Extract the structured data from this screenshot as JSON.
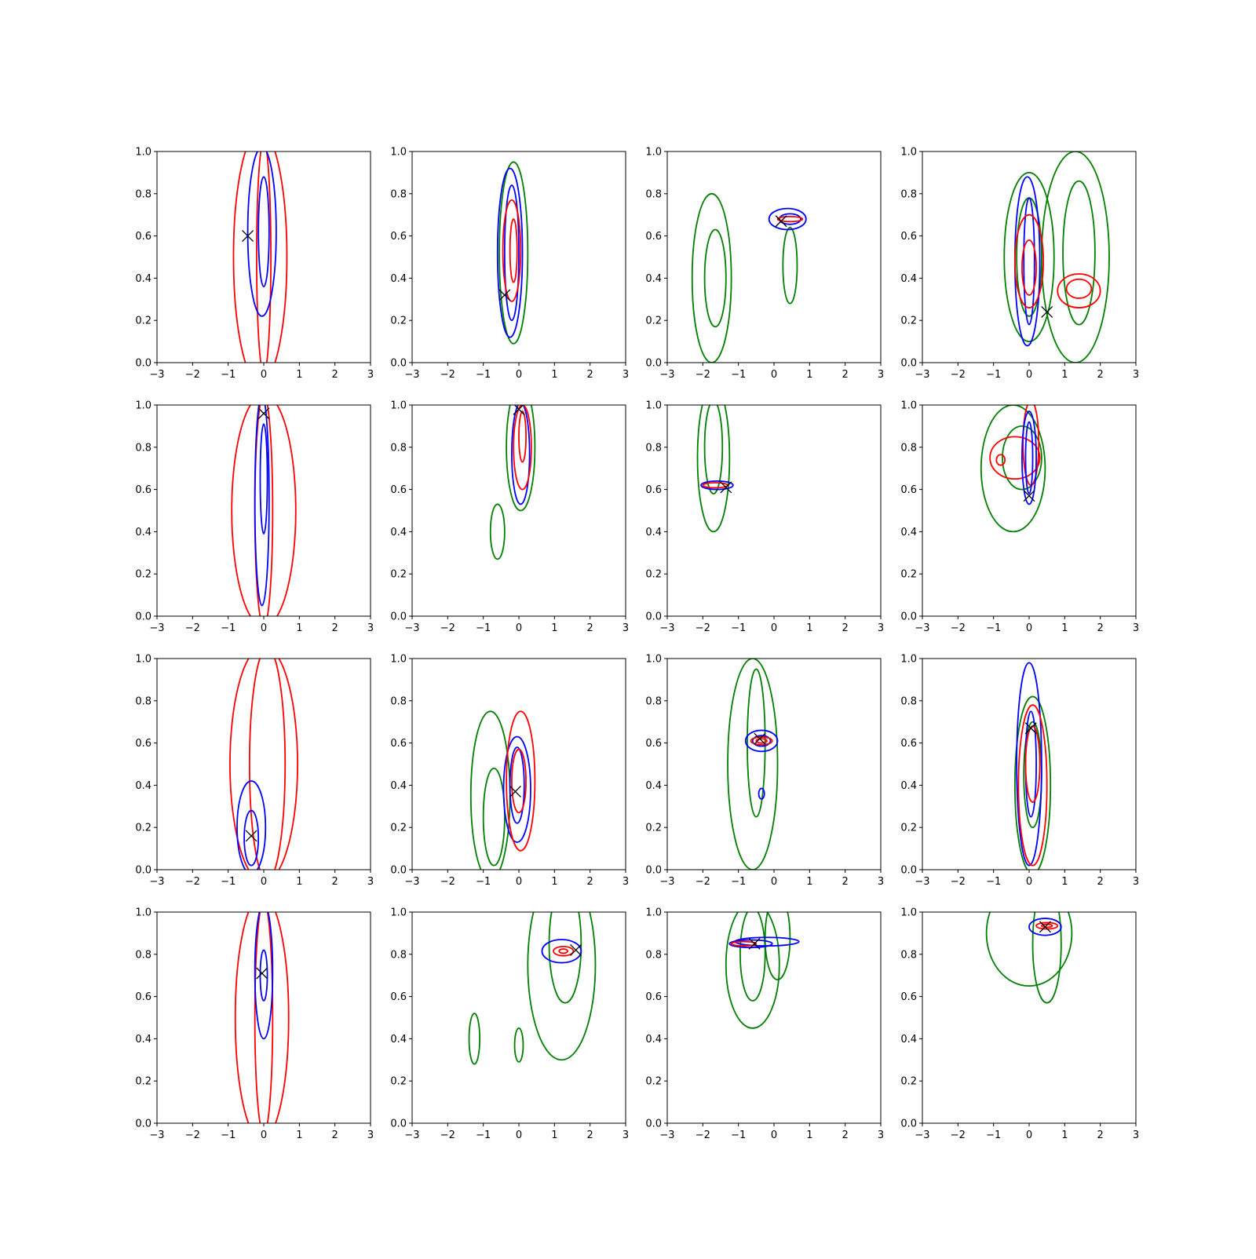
{
  "chart_data": {
    "type": "contour",
    "rows": 4,
    "cols": 4,
    "xlim": [
      -3,
      3
    ],
    "ylim": [
      0,
      1
    ],
    "xticks": [
      "−3",
      "−2",
      "−1",
      "0",
      "1",
      "2",
      "3"
    ],
    "yticks": [
      "0.0",
      "0.2",
      "0.4",
      "0.6",
      "0.8",
      "1.0"
    ],
    "colors": {
      "red": "#ff0000",
      "blue": "#0000ff",
      "green": "#008000",
      "marker": "#000000"
    },
    "marker_symbol": "x",
    "panels": [
      {
        "marker": [
          -0.45,
          0.6
        ],
        "contours": [
          {
            "color": "red",
            "cx": -0.1,
            "cy": 0.5,
            "rx": 0.75,
            "ry": 0.6
          },
          {
            "color": "red",
            "cx": 0.0,
            "cy": 0.5,
            "rx": 0.2,
            "ry": 0.55
          },
          {
            "color": "blue",
            "cx": -0.05,
            "cy": 0.62,
            "rx": 0.4,
            "ry": 0.4
          },
          {
            "color": "blue",
            "cx": 0.0,
            "cy": 0.62,
            "rx": 0.15,
            "ry": 0.26
          }
        ]
      },
      {
        "marker": [
          -0.4,
          0.32
        ],
        "contours": [
          {
            "color": "green",
            "cx": -0.15,
            "cy": 0.52,
            "rx": 0.4,
            "ry": 0.43
          },
          {
            "color": "blue",
            "cx": -0.25,
            "cy": 0.52,
            "rx": 0.35,
            "ry": 0.4
          },
          {
            "color": "blue",
            "cx": -0.2,
            "cy": 0.52,
            "rx": 0.2,
            "ry": 0.32
          },
          {
            "color": "red",
            "cx": -0.2,
            "cy": 0.53,
            "rx": 0.25,
            "ry": 0.24
          },
          {
            "color": "red",
            "cx": -0.15,
            "cy": 0.53,
            "rx": 0.1,
            "ry": 0.15
          }
        ]
      },
      {
        "marker": [
          0.2,
          0.67
        ],
        "contours": [
          {
            "color": "green",
            "cx": -1.75,
            "cy": 0.4,
            "rx": 0.55,
            "ry": 0.4
          },
          {
            "color": "green",
            "cx": -1.65,
            "cy": 0.4,
            "rx": 0.3,
            "ry": 0.23
          },
          {
            "color": "green",
            "cx": 0.45,
            "cy": 0.46,
            "rx": 0.2,
            "ry": 0.18
          },
          {
            "color": "blue",
            "cx": 0.38,
            "cy": 0.68,
            "rx": 0.52,
            "ry": 0.05
          },
          {
            "color": "blue",
            "cx": 0.45,
            "cy": 0.68,
            "rx": 0.3,
            "ry": 0.025
          },
          {
            "color": "red",
            "cx": 0.45,
            "cy": 0.68,
            "rx": 0.35,
            "ry": 0.012
          }
        ]
      },
      {
        "marker": [
          0.5,
          0.24
        ],
        "contours": [
          {
            "color": "green",
            "cx": 0.0,
            "cy": 0.5,
            "rx": 0.7,
            "ry": 0.4
          },
          {
            "color": "green",
            "cx": 0.0,
            "cy": 0.5,
            "rx": 0.35,
            "ry": 0.28
          },
          {
            "color": "green",
            "cx": 1.3,
            "cy": 0.5,
            "rx": 0.95,
            "ry": 0.5
          },
          {
            "color": "green",
            "cx": 1.4,
            "cy": 0.52,
            "rx": 0.45,
            "ry": 0.34
          },
          {
            "color": "blue",
            "cx": -0.05,
            "cy": 0.48,
            "rx": 0.35,
            "ry": 0.4
          },
          {
            "color": "blue",
            "cx": 0.0,
            "cy": 0.48,
            "rx": 0.15,
            "ry": 0.3
          },
          {
            "color": "red",
            "cx": 0.0,
            "cy": 0.48,
            "rx": 0.4,
            "ry": 0.22
          },
          {
            "color": "red",
            "cx": 0.0,
            "cy": 0.45,
            "rx": 0.2,
            "ry": 0.13
          },
          {
            "color": "red",
            "cx": 1.4,
            "cy": 0.34,
            "rx": 0.6,
            "ry": 0.08
          },
          {
            "color": "red",
            "cx": 1.4,
            "cy": 0.35,
            "rx": 0.35,
            "ry": 0.045
          }
        ]
      },
      {
        "marker": [
          0.0,
          0.96
        ],
        "contours": [
          {
            "color": "red",
            "cx": 0.0,
            "cy": 0.5,
            "rx": 0.9,
            "ry": 0.55
          },
          {
            "color": "red",
            "cx": 0.0,
            "cy": 0.5,
            "rx": 0.25,
            "ry": 0.55
          },
          {
            "color": "blue",
            "cx": -0.05,
            "cy": 0.55,
            "rx": 0.2,
            "ry": 0.5
          },
          {
            "color": "blue",
            "cx": 0.0,
            "cy": 0.65,
            "rx": 0.1,
            "ry": 0.26
          }
        ]
      },
      {
        "marker": [
          0.0,
          0.98
        ],
        "contours": [
          {
            "color": "green",
            "cx": 0.05,
            "cy": 0.8,
            "rx": 0.4,
            "ry": 0.3
          },
          {
            "color": "green",
            "cx": -0.6,
            "cy": 0.4,
            "rx": 0.2,
            "ry": 0.13
          },
          {
            "color": "blue",
            "cx": 0.05,
            "cy": 0.77,
            "rx": 0.25,
            "ry": 0.24
          },
          {
            "color": "red",
            "cx": 0.1,
            "cy": 0.8,
            "rx": 0.25,
            "ry": 0.2
          },
          {
            "color": "red",
            "cx": 0.1,
            "cy": 0.85,
            "rx": 0.1,
            "ry": 0.12
          }
        ]
      },
      {
        "marker": [
          -1.35,
          0.61
        ],
        "contours": [
          {
            "color": "green",
            "cx": -1.7,
            "cy": 0.75,
            "rx": 0.45,
            "ry": 0.35
          },
          {
            "color": "green",
            "cx": -1.7,
            "cy": 0.8,
            "rx": 0.25,
            "ry": 0.22
          },
          {
            "color": "blue",
            "cx": -1.6,
            "cy": 0.62,
            "rx": 0.45,
            "ry": 0.02
          },
          {
            "color": "red",
            "cx": -1.65,
            "cy": 0.62,
            "rx": 0.35,
            "ry": 0.012
          }
        ]
      },
      {
        "marker": [
          0.0,
          0.57
        ],
        "contours": [
          {
            "color": "green",
            "cx": -0.45,
            "cy": 0.7,
            "rx": 0.9,
            "ry": 0.3
          },
          {
            "color": "green",
            "cx": -0.2,
            "cy": 0.75,
            "rx": 0.55,
            "ry": 0.15
          },
          {
            "color": "red",
            "cx": -0.4,
            "cy": 0.75,
            "rx": 0.7,
            "ry": 0.1
          },
          {
            "color": "red",
            "cx": -0.8,
            "cy": 0.74,
            "rx": 0.12,
            "ry": 0.025
          },
          {
            "color": "red",
            "cx": 0.05,
            "cy": 0.82,
            "rx": 0.22,
            "ry": 0.2
          },
          {
            "color": "blue",
            "cx": 0.0,
            "cy": 0.75,
            "rx": 0.2,
            "ry": 0.22
          },
          {
            "color": "blue",
            "cx": 0.0,
            "cy": 0.75,
            "rx": 0.1,
            "ry": 0.17
          }
        ]
      },
      {
        "marker": [
          -0.35,
          0.16
        ],
        "contours": [
          {
            "color": "red",
            "cx": 0.0,
            "cy": 0.5,
            "rx": 0.95,
            "ry": 0.56
          },
          {
            "color": "red",
            "cx": 0.1,
            "cy": 0.5,
            "rx": 0.5,
            "ry": 0.55
          },
          {
            "color": "blue",
            "cx": -0.35,
            "cy": 0.2,
            "rx": 0.4,
            "ry": 0.22
          },
          {
            "color": "blue",
            "cx": -0.35,
            "cy": 0.15,
            "rx": 0.2,
            "ry": 0.13
          }
        ]
      },
      {
        "marker": [
          -0.1,
          0.37
        ],
        "contours": [
          {
            "color": "green",
            "cx": -0.8,
            "cy": 0.35,
            "rx": 0.55,
            "ry": 0.4
          },
          {
            "color": "green",
            "cx": -0.7,
            "cy": 0.25,
            "rx": 0.3,
            "ry": 0.23
          },
          {
            "color": "blue",
            "cx": -0.05,
            "cy": 0.38,
            "rx": 0.38,
            "ry": 0.25
          },
          {
            "color": "blue",
            "cx": -0.05,
            "cy": 0.4,
            "rx": 0.2,
            "ry": 0.18
          },
          {
            "color": "red",
            "cx": 0.05,
            "cy": 0.42,
            "rx": 0.4,
            "ry": 0.33
          },
          {
            "color": "red",
            "cx": 0.0,
            "cy": 0.42,
            "rx": 0.2,
            "ry": 0.15
          }
        ]
      },
      {
        "marker": [
          -0.4,
          0.62
        ],
        "contours": [
          {
            "color": "green",
            "cx": -0.6,
            "cy": 0.5,
            "rx": 0.7,
            "ry": 0.5
          },
          {
            "color": "green",
            "cx": -0.5,
            "cy": 0.6,
            "rx": 0.25,
            "ry": 0.35
          },
          {
            "color": "blue",
            "cx": -0.35,
            "cy": 0.61,
            "rx": 0.45,
            "ry": 0.05
          },
          {
            "color": "blue",
            "cx": -0.35,
            "cy": 0.61,
            "rx": 0.25,
            "ry": 0.025
          },
          {
            "color": "blue",
            "cx": -0.35,
            "cy": 0.36,
            "rx": 0.08,
            "ry": 0.025
          },
          {
            "color": "red",
            "cx": -0.35,
            "cy": 0.61,
            "rx": 0.3,
            "ry": 0.018
          },
          {
            "color": "red",
            "cx": -0.35,
            "cy": 0.61,
            "rx": 0.15,
            "ry": 0.01
          }
        ]
      },
      {
        "marker": [
          0.05,
          0.67
        ],
        "contours": [
          {
            "color": "green",
            "cx": 0.1,
            "cy": 0.4,
            "rx": 0.5,
            "ry": 0.42
          },
          {
            "color": "green",
            "cx": 0.1,
            "cy": 0.45,
            "rx": 0.25,
            "ry": 0.25
          },
          {
            "color": "blue",
            "cx": 0.0,
            "cy": 0.5,
            "rx": 0.35,
            "ry": 0.48
          },
          {
            "color": "blue",
            "cx": 0.05,
            "cy": 0.5,
            "rx": 0.15,
            "ry": 0.25
          },
          {
            "color": "red",
            "cx": 0.1,
            "cy": 0.4,
            "rx": 0.4,
            "ry": 0.38
          },
          {
            "color": "red",
            "cx": 0.1,
            "cy": 0.5,
            "rx": 0.2,
            "ry": 0.18
          }
        ]
      },
      {
        "marker": [
          -0.05,
          0.71
        ],
        "contours": [
          {
            "color": "red",
            "cx": -0.05,
            "cy": 0.5,
            "rx": 0.75,
            "ry": 0.58
          },
          {
            "color": "red",
            "cx": 0.0,
            "cy": 0.5,
            "rx": 0.25,
            "ry": 0.55
          },
          {
            "color": "blue",
            "cx": 0.0,
            "cy": 0.72,
            "rx": 0.25,
            "ry": 0.32
          },
          {
            "color": "blue",
            "cx": 0.0,
            "cy": 0.7,
            "rx": 0.1,
            "ry": 0.12
          }
        ]
      },
      {
        "marker": [
          1.6,
          0.82
        ],
        "contours": [
          {
            "color": "green",
            "cx": 1.2,
            "cy": 0.75,
            "rx": 0.95,
            "ry": 0.45
          },
          {
            "color": "green",
            "cx": 1.3,
            "cy": 0.85,
            "rx": 0.45,
            "ry": 0.28
          },
          {
            "color": "green",
            "cx": -1.25,
            "cy": 0.4,
            "rx": 0.15,
            "ry": 0.12
          },
          {
            "color": "green",
            "cx": 0.0,
            "cy": 0.37,
            "rx": 0.12,
            "ry": 0.08
          },
          {
            "color": "blue",
            "cx": 1.2,
            "cy": 0.815,
            "rx": 0.55,
            "ry": 0.055
          },
          {
            "color": "red",
            "cx": 1.25,
            "cy": 0.815,
            "rx": 0.28,
            "ry": 0.022
          },
          {
            "color": "red",
            "cx": 1.25,
            "cy": 0.815,
            "rx": 0.12,
            "ry": 0.01
          }
        ]
      },
      {
        "marker": [
          -0.55,
          0.85
        ],
        "contours": [
          {
            "color": "green",
            "cx": -0.6,
            "cy": 0.75,
            "rx": 0.75,
            "ry": 0.3
          },
          {
            "color": "green",
            "cx": -0.6,
            "cy": 0.8,
            "rx": 0.35,
            "ry": 0.22
          },
          {
            "color": "green",
            "cx": 0.1,
            "cy": 0.88,
            "rx": 0.35,
            "ry": 0.2
          },
          {
            "color": "blue",
            "cx": -0.2,
            "cy": 0.86,
            "rx": 0.9,
            "ry": 0.02
          },
          {
            "color": "blue",
            "cx": -0.65,
            "cy": 0.85,
            "rx": 0.6,
            "ry": 0.018
          },
          {
            "color": "red",
            "cx": -0.85,
            "cy": 0.85,
            "rx": 0.35,
            "ry": 0.01
          }
        ]
      },
      {
        "marker": [
          0.45,
          0.93
        ],
        "contours": [
          {
            "color": "green",
            "cx": 0.0,
            "cy": 0.9,
            "rx": 1.2,
            "ry": 0.25
          },
          {
            "color": "green",
            "cx": 0.5,
            "cy": 0.85,
            "rx": 0.4,
            "ry": 0.28
          },
          {
            "color": "blue",
            "cx": 0.45,
            "cy": 0.93,
            "rx": 0.45,
            "ry": 0.04
          },
          {
            "color": "red",
            "cx": 0.5,
            "cy": 0.935,
            "rx": 0.3,
            "ry": 0.015
          },
          {
            "color": "red",
            "cx": 0.5,
            "cy": 0.935,
            "rx": 0.15,
            "ry": 0.007
          }
        ]
      }
    ]
  }
}
